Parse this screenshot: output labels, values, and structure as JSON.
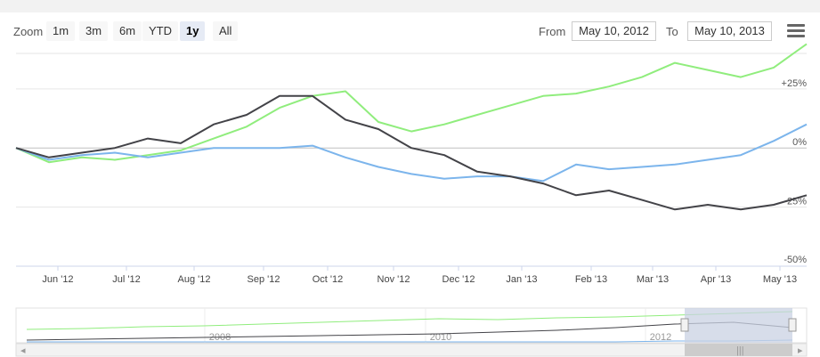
{
  "toolbar": {
    "zoom_label": "Zoom",
    "buttons": [
      "1m",
      "3m",
      "6m",
      "YTD",
      "1y",
      "All"
    ],
    "active_button": "1y",
    "from_label": "From",
    "from_value": "May 10, 2012",
    "to_label": "To",
    "to_value": "May 10, 2013",
    "menu_icon": "hamburger-menu-icon"
  },
  "colors": {
    "series_green": "#90ed7d",
    "series_blue": "#7cb5ec",
    "series_black": "#434348",
    "navigator_mask": "#c9d1e3"
  },
  "chart_data": {
    "type": "line",
    "title": "",
    "xlabel": "",
    "ylabel": "",
    "ylim": [
      -50,
      40
    ],
    "y_ticks": [
      "+25%",
      "0%",
      "-25%",
      "-50%"
    ],
    "x_tick_labels": [
      "Jun '12",
      "Jul '12",
      "Aug '12",
      "Sep '12",
      "Oct '12",
      "Nov '12",
      "Dec '12",
      "Jan '13",
      "Feb '13",
      "Mar '13",
      "Apr '13",
      "May '13"
    ],
    "x": [
      "May 10",
      "Jun 1",
      "Jun 15",
      "Jul 1",
      "Jul 15",
      "Aug 1",
      "Aug 15",
      "Sep 1",
      "Sep 15",
      "Oct 1",
      "Oct 15",
      "Nov 1",
      "Nov 15",
      "Dec 1",
      "Dec 15",
      "Jan 1",
      "Jan 15",
      "Feb 1",
      "Feb 15",
      "Mar 1",
      "Mar 15",
      "Apr 1",
      "Apr 15",
      "May 1",
      "May 10"
    ],
    "series": [
      {
        "values": [
          0,
          -6,
          -4,
          -5,
          -3,
          -1,
          4,
          9,
          17,
          22,
          24,
          11,
          7,
          10,
          14,
          18,
          22,
          23,
          26,
          30,
          36,
          33,
          30,
          34,
          44
        ]
      },
      {
        "values": [
          0,
          -5,
          -3,
          -2,
          -4,
          -2,
          0,
          0,
          0,
          1,
          -4,
          -8,
          -11,
          -13,
          -12,
          -12,
          -14,
          -7,
          -9,
          -8,
          -7,
          -5,
          -3,
          3,
          10
        ]
      },
      {
        "values": [
          0,
          -4,
          -2,
          0,
          4,
          2,
          10,
          14,
          22,
          22,
          12,
          8,
          0,
          -3,
          -10,
          -12,
          -15,
          -20,
          -18,
          -22,
          -26,
          -24,
          -26,
          -24,
          -20
        ]
      }
    ],
    "navigator": {
      "x_tick_labels": [
        "2008",
        "2010",
        "2012"
      ]
    }
  }
}
